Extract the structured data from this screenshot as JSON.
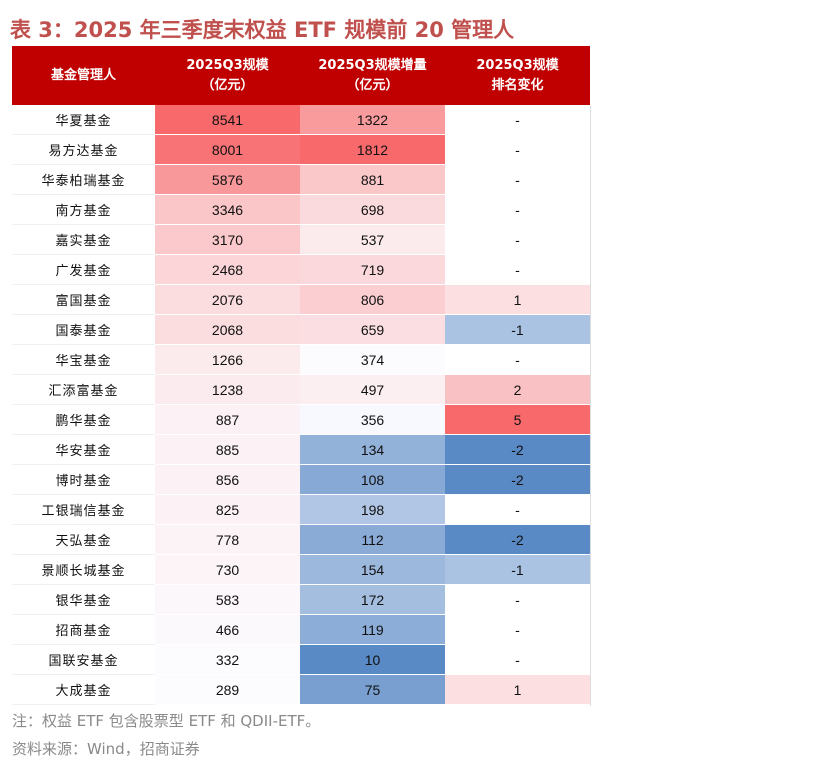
{
  "header": {
    "title": "表 3：2025 年三季度末权益 ETF 规模前 20 管理人"
  },
  "table": {
    "columns": [
      "基金管理人",
      "2025Q3规模\n（亿元）",
      "2025Q3规模增量\n（亿元）",
      "2025Q3规模\n排名变化"
    ],
    "rows": [
      [
        "华夏基金",
        8541,
        1322,
        "-"
      ],
      [
        "易方达基金",
        8001,
        1812,
        "-"
      ],
      [
        "华泰柏瑞基金",
        5876,
        881,
        "-"
      ],
      [
        "南方基金",
        3346,
        698,
        "-"
      ],
      [
        "嘉实基金",
        3170,
        537,
        "-"
      ],
      [
        "广发基金",
        2468,
        719,
        "-"
      ],
      [
        "富国基金",
        2076,
        806,
        1
      ],
      [
        "国泰基金",
        2068,
        659,
        -1
      ],
      [
        "华宝基金",
        1266,
        374,
        "-"
      ],
      [
        "汇添富基金",
        1238,
        497,
        2
      ],
      [
        "鹏华基金",
        887,
        356,
        5
      ],
      [
        "华安基金",
        885,
        134,
        -2
      ],
      [
        "博时基金",
        856,
        108,
        -2
      ],
      [
        "工银瑞信基金",
        825,
        198,
        "-"
      ],
      [
        "天弘基金",
        778,
        112,
        -2
      ],
      [
        "景顺长城基金",
        730,
        154,
        -1
      ],
      [
        "银华基金",
        583,
        172,
        "-"
      ],
      [
        "招商基金",
        466,
        119,
        "-"
      ],
      [
        "国联安基金",
        332,
        10,
        "-"
      ],
      [
        "大成基金",
        289,
        75,
        1
      ]
    ]
  },
  "notes": [
    "注：权益 ETF 包含股票型 ETF 和 QDII-ETF。",
    "资料来源：Wind，招商证券"
  ]
}
